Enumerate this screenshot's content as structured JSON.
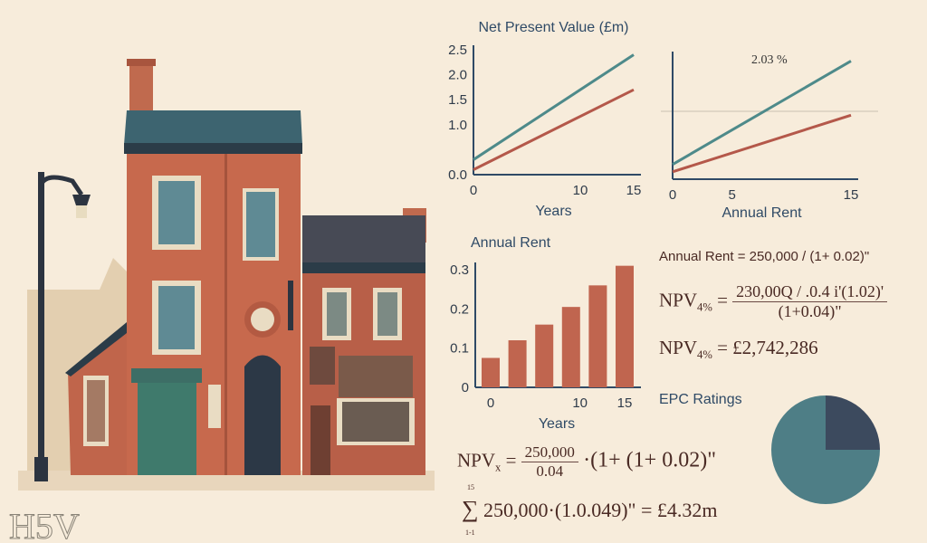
{
  "colors": {
    "teal": "#4e8a8a",
    "red": "#b4584a",
    "axis": "#2f4a66",
    "bar": "#c0654f",
    "pie_main": "#4e7e86",
    "pie_slice": "#3c4a5e"
  },
  "chart_data": [
    {
      "type": "line",
      "title": "Net Present Value (£m)",
      "xlabel": "Years",
      "ylabel": "",
      "xlim": [
        0,
        15
      ],
      "ylim": [
        0,
        2.5
      ],
      "xticks": [
        "0",
        "10",
        "15"
      ],
      "xtick_values": [
        0,
        10,
        15
      ],
      "yticks": [
        "2.5",
        "2.0",
        "1.5",
        "1.0",
        "0.0"
      ],
      "ytick_values": [
        2.5,
        2.0,
        1.5,
        1.0,
        0.0
      ],
      "series": [
        {
          "name": "teal",
          "x": [
            0,
            15
          ],
          "y": [
            0.3,
            2.4
          ]
        },
        {
          "name": "red",
          "x": [
            0,
            15
          ],
          "y": [
            0.1,
            1.7
          ]
        }
      ]
    },
    {
      "type": "line",
      "title": "",
      "annotation": "2.03 %",
      "xlabel": "Annual Rent",
      "xlim": [
        0,
        15
      ],
      "ylim": [
        0,
        2.5
      ],
      "xticks": [
        "0",
        "5",
        "15"
      ],
      "xtick_values": [
        0,
        5,
        15
      ],
      "series": [
        {
          "name": "teal",
          "x": [
            0,
            15
          ],
          "y": [
            0.3,
            2.4
          ]
        },
        {
          "name": "red",
          "x": [
            0,
            15
          ],
          "y": [
            0.15,
            1.3
          ]
        }
      ]
    },
    {
      "type": "bar",
      "title": "Annual Rent",
      "xlabel": "Years",
      "ylim": [
        0,
        0.3
      ],
      "x": [
        0,
        3,
        6,
        9,
        12,
        15
      ],
      "values": [
        0.075,
        0.12,
        0.16,
        0.205,
        0.26,
        0.31
      ],
      "xticks": [
        "0",
        "10",
        "15"
      ],
      "xtick_values": [
        0,
        10,
        15
      ],
      "yticks": [
        "0.3",
        "0.2",
        "0.1",
        "0"
      ],
      "ytick_values": [
        0.3,
        0.2,
        0.1,
        0
      ]
    },
    {
      "type": "pie",
      "title": "EPC Ratings",
      "values": [
        75,
        25
      ]
    }
  ],
  "formulas": {
    "annual_rent": "Annual Rent = 250,000 / (1+ 0.02)\"",
    "npv4_label": "NPV",
    "npv4_sub": "4%",
    "npv4_num": "230,00Q / .0.4 i'(1.02)'",
    "npv4_den": "(1+0.04)\"",
    "npv4_result": "= £2,742,286",
    "npvx_label": "NPV",
    "npvx_sub": "x",
    "npvx_num": "250,000",
    "npvx_den": "0.04",
    "npvx_tail": "·(1+ (1+ 0.02)\"",
    "sum_top": "15",
    "sum_bottom": "1-1",
    "sum_expr": "250,000·(1.0.049)\" = £4.32m"
  },
  "signature": "H5V"
}
